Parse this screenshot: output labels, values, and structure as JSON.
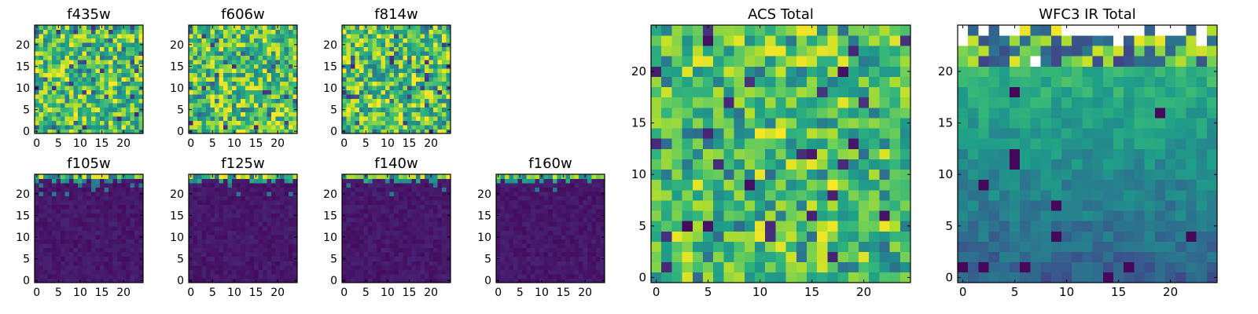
{
  "colors": {
    "colormap": "viridis",
    "low": "#440154",
    "mid": "#21918c",
    "high": "#fde725",
    "frame": "#000000",
    "background": "#ffffff"
  },
  "chart_data": [
    {
      "type": "heatmap",
      "title": "f435w",
      "field": "acs_noise",
      "grid": [
        25,
        25
      ],
      "xticks": [
        "0",
        "5",
        "10",
        "15",
        "20"
      ],
      "yticks": [
        "0",
        "5",
        "10",
        "15",
        "20"
      ],
      "xlim": [
        -0.5,
        24.5
      ],
      "ylim": [
        -0.5,
        24.5
      ],
      "value_range": [
        0,
        1
      ]
    },
    {
      "type": "heatmap",
      "title": "f606w",
      "field": "acs_noise",
      "grid": [
        25,
        25
      ],
      "xticks": [
        "0",
        "5",
        "10",
        "15",
        "20"
      ],
      "yticks": [
        "0",
        "5",
        "10",
        "15",
        "20"
      ],
      "xlim": [
        -0.5,
        24.5
      ],
      "ylim": [
        -0.5,
        24.5
      ],
      "value_range": [
        0,
        1
      ]
    },
    {
      "type": "heatmap",
      "title": "f814w",
      "field": "acs_noise",
      "grid": [
        25,
        25
      ],
      "xticks": [
        "0",
        "5",
        "10",
        "15",
        "20"
      ],
      "yticks": [
        "0",
        "5",
        "10",
        "15",
        "20"
      ],
      "xlim": [
        -0.5,
        24.5
      ],
      "ylim": [
        -0.5,
        24.5
      ],
      "value_range": [
        0,
        1
      ]
    },
    {
      "type": "heatmap",
      "title": "f105w",
      "field": "ir_faint_top_band",
      "grid": [
        25,
        25
      ],
      "xticks": [
        "0",
        "5",
        "10",
        "15",
        "20"
      ],
      "yticks": [
        "0",
        "5",
        "10",
        "15",
        "20"
      ],
      "xlim": [
        -0.5,
        24.5
      ],
      "ylim": [
        -0.5,
        24.5
      ],
      "value_range": [
        0,
        1
      ]
    },
    {
      "type": "heatmap",
      "title": "f125w",
      "field": "ir_faint_top_band",
      "grid": [
        25,
        25
      ],
      "xticks": [
        "0",
        "5",
        "10",
        "15",
        "20"
      ],
      "yticks": [
        "0",
        "5",
        "10",
        "15",
        "20"
      ],
      "xlim": [
        -0.5,
        24.5
      ],
      "ylim": [
        -0.5,
        24.5
      ],
      "value_range": [
        0,
        1
      ]
    },
    {
      "type": "heatmap",
      "title": "f140w",
      "field": "ir_faint_top_band",
      "grid": [
        25,
        25
      ],
      "xticks": [
        "0",
        "5",
        "10",
        "15",
        "20"
      ],
      "yticks": [
        "0",
        "5",
        "10",
        "15",
        "20"
      ],
      "xlim": [
        -0.5,
        24.5
      ],
      "ylim": [
        -0.5,
        24.5
      ],
      "value_range": [
        0,
        1
      ]
    },
    {
      "type": "heatmap",
      "title": "f160w",
      "field": "ir_faint_top_band",
      "grid": [
        25,
        25
      ],
      "xticks": [
        "0",
        "5",
        "10",
        "15",
        "20"
      ],
      "yticks": [
        "0",
        "5",
        "10",
        "15",
        "20"
      ],
      "xlim": [
        -0.5,
        24.5
      ],
      "ylim": [
        -0.5,
        24.5
      ],
      "value_range": [
        0,
        1
      ]
    },
    {
      "type": "heatmap",
      "title": "ACS Total",
      "field": "acs_total",
      "grid": [
        25,
        25
      ],
      "xticks": [
        "0",
        "5",
        "10",
        "15",
        "20"
      ],
      "yticks": [
        "0",
        "5",
        "10",
        "15",
        "20"
      ],
      "xlim": [
        -0.5,
        24.5
      ],
      "ylim": [
        -0.5,
        24.5
      ],
      "value_range": [
        0,
        1
      ]
    },
    {
      "type": "heatmap",
      "title": "WFC3 IR Total",
      "field": "ir_total",
      "grid": [
        25,
        25
      ],
      "xticks": [
        "0",
        "5",
        "10",
        "15",
        "20"
      ],
      "yticks": [
        "0",
        "5",
        "10",
        "15",
        "20"
      ],
      "xlim": [
        -0.5,
        24.5
      ],
      "ylim": [
        -0.5,
        24.5
      ],
      "value_range": [
        0,
        1
      ],
      "masked_cells_at_top": true
    }
  ]
}
